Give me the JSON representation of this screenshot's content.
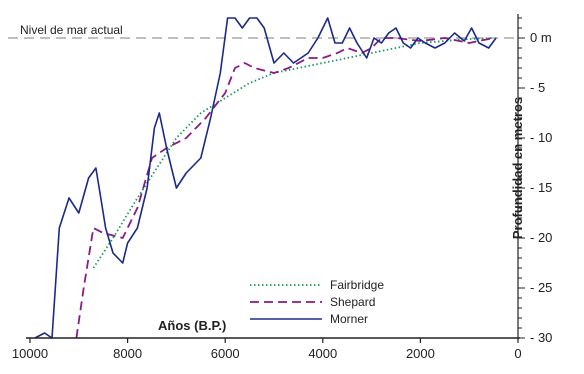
{
  "chart_data": {
    "type": "line",
    "title": "",
    "xlabel": "Años (B.P.)",
    "ylabel": "Profundidad en metros",
    "xlim": [
      10000,
      0
    ],
    "ylim": [
      -30,
      2.5
    ],
    "x_ticks": [
      10000,
      8000,
      6000,
      4000,
      2000,
      0
    ],
    "x_tick_labels": [
      "10000",
      "8000",
      "6000",
      "4000",
      "2000",
      "0"
    ],
    "y_ticks": [
      0,
      -5,
      -10,
      -15,
      -20,
      -25,
      -30
    ],
    "y_tick_labels": [
      "0 m",
      "- 5",
      "- 10",
      "- 15",
      "- 20",
      "- 25",
      "- 30"
    ],
    "reference_line": {
      "y": 0,
      "label": "Nivel de mar actual",
      "color": "#aaaaaa"
    },
    "legend_position": "bottom-center",
    "series": [
      {
        "name": "Fairbridge",
        "color": "#1a9a5a",
        "style": "dotted",
        "points": [
          [
            8700,
            -23
          ],
          [
            8300,
            -20
          ],
          [
            7800,
            -16
          ],
          [
            7000,
            -10
          ],
          [
            6500,
            -7.5
          ],
          [
            6000,
            -6
          ],
          [
            5500,
            -4.5
          ],
          [
            5000,
            -3.5
          ],
          [
            4500,
            -3
          ],
          [
            4000,
            -2.5
          ],
          [
            3500,
            -2
          ],
          [
            3000,
            -1.5
          ],
          [
            2500,
            -1
          ],
          [
            2000,
            -0.5
          ],
          [
            1500,
            -0.3
          ],
          [
            1000,
            -0.1
          ],
          [
            500,
            0
          ]
        ]
      },
      {
        "name": "Shepard",
        "color": "#8a1a8a",
        "style": "dashed",
        "points": [
          [
            9050,
            -30
          ],
          [
            8900,
            -25
          ],
          [
            8700,
            -19
          ],
          [
            8500,
            -19.5
          ],
          [
            8100,
            -20
          ],
          [
            7800,
            -17
          ],
          [
            7500,
            -12
          ],
          [
            7200,
            -11
          ],
          [
            6800,
            -10
          ],
          [
            6400,
            -8
          ],
          [
            6000,
            -5.5
          ],
          [
            5800,
            -3
          ],
          [
            5600,
            -2.5
          ],
          [
            5400,
            -3
          ],
          [
            5000,
            -3.5
          ],
          [
            4700,
            -3
          ],
          [
            4300,
            -2
          ],
          [
            4000,
            -2
          ],
          [
            3700,
            -1.5
          ],
          [
            3500,
            -1
          ],
          [
            3200,
            -1.5
          ],
          [
            3000,
            -1
          ],
          [
            2800,
            0
          ],
          [
            2500,
            0
          ],
          [
            2000,
            -0.3
          ],
          [
            1500,
            0
          ],
          [
            1000,
            -0.5
          ],
          [
            500,
            0
          ]
        ]
      },
      {
        "name": "Morner",
        "color": "#1a2a8a",
        "style": "solid",
        "points": [
          [
            9900,
            -30
          ],
          [
            9700,
            -29.5
          ],
          [
            9550,
            -30
          ],
          [
            9400,
            -19
          ],
          [
            9200,
            -16
          ],
          [
            9000,
            -17.5
          ],
          [
            8800,
            -14
          ],
          [
            8650,
            -13
          ],
          [
            8550,
            -16
          ],
          [
            8450,
            -19
          ],
          [
            8300,
            -21.5
          ],
          [
            8100,
            -22.5
          ],
          [
            8000,
            -20.5
          ],
          [
            7800,
            -19
          ],
          [
            7600,
            -15
          ],
          [
            7450,
            -9
          ],
          [
            7350,
            -7.5
          ],
          [
            7200,
            -11
          ],
          [
            7000,
            -15
          ],
          [
            6800,
            -13.5
          ],
          [
            6500,
            -12
          ],
          [
            6300,
            -8
          ],
          [
            6100,
            -3.5
          ],
          [
            5950,
            2
          ],
          [
            5800,
            2
          ],
          [
            5650,
            1
          ],
          [
            5500,
            2
          ],
          [
            5350,
            2
          ],
          [
            5200,
            1
          ],
          [
            5000,
            -2.5
          ],
          [
            4800,
            -1.5
          ],
          [
            4600,
            -2.5
          ],
          [
            4300,
            -1.5
          ],
          [
            4100,
            0
          ],
          [
            3900,
            2
          ],
          [
            3750,
            -0.5
          ],
          [
            3600,
            -0.5
          ],
          [
            3450,
            1
          ],
          [
            3300,
            -0.5
          ],
          [
            3100,
            -2
          ],
          [
            2950,
            0
          ],
          [
            2800,
            -0.5
          ],
          [
            2650,
            0.5
          ],
          [
            2500,
            1
          ],
          [
            2350,
            -0.5
          ],
          [
            2200,
            -1
          ],
          [
            2050,
            0
          ],
          [
            1900,
            -0.5
          ],
          [
            1700,
            -1
          ],
          [
            1500,
            -0.5
          ],
          [
            1300,
            0.5
          ],
          [
            1100,
            -0.3
          ],
          [
            950,
            1
          ],
          [
            800,
            -0.5
          ],
          [
            600,
            -1
          ],
          [
            450,
            0
          ]
        ]
      }
    ]
  }
}
